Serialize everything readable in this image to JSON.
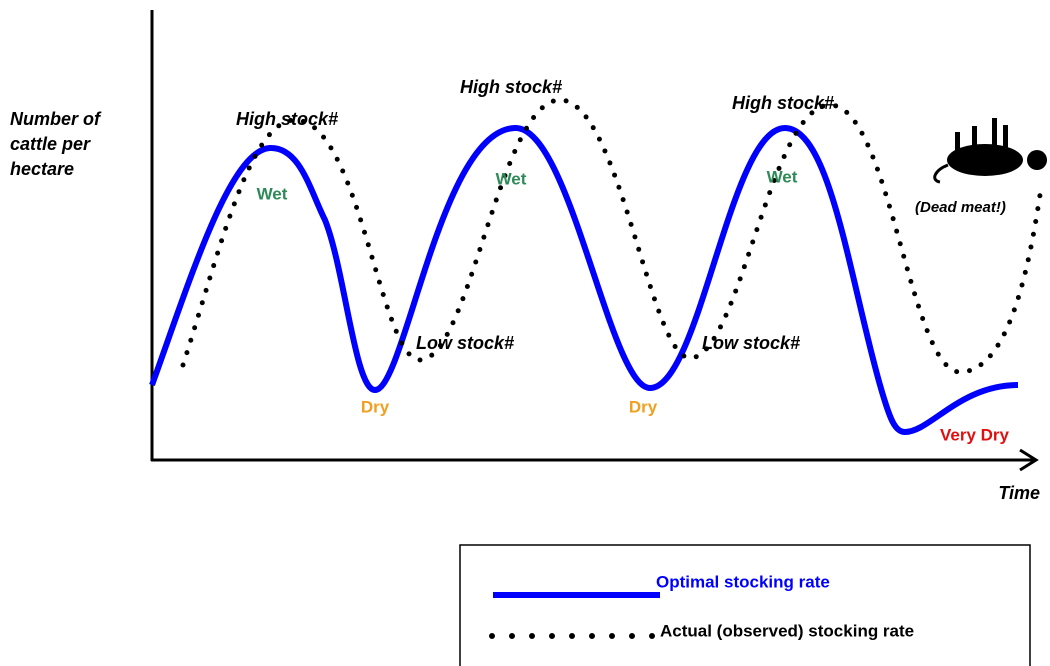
{
  "axes": {
    "y_label": [
      "Number of",
      "cattle per",
      "hectare"
    ],
    "x_label": "Time"
  },
  "annotations": {
    "high_stock": [
      "High stock#",
      "High stock#",
      "High stock#"
    ],
    "wet": [
      "Wet",
      "Wet",
      "Wet"
    ],
    "low_stock": [
      "Low stock#",
      "Low stock#"
    ],
    "dry": [
      "Dry",
      "Dry"
    ],
    "very_dry": "Very Dry",
    "dead_meat": "(Dead meat!)"
  },
  "legend": [
    "Optimal stocking rate",
    "Actual (observed) stocking rate"
  ]
}
